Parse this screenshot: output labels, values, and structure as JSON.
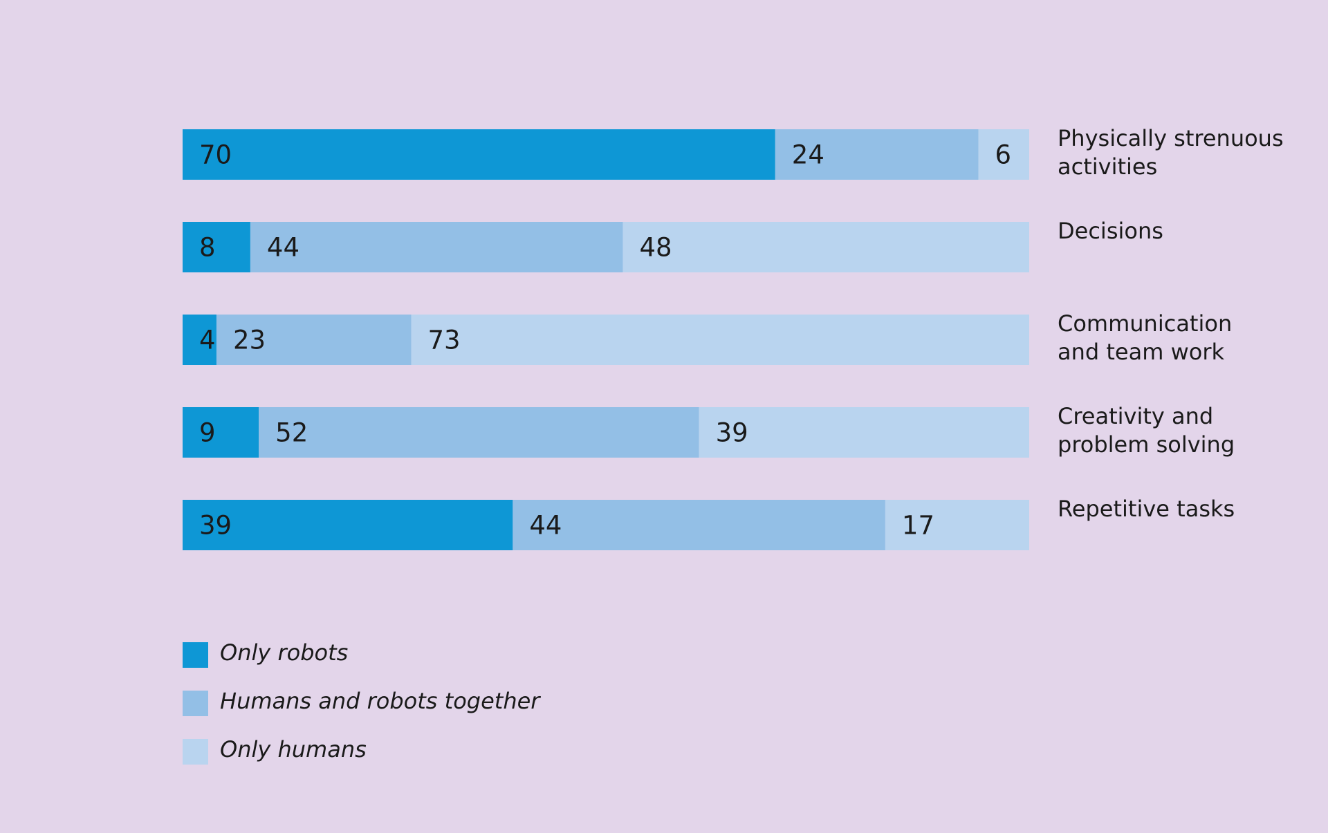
{
  "chart_data": {
    "type": "bar",
    "orientation": "horizontal",
    "stacked": true,
    "xlim": [
      0,
      100
    ],
    "grid": false,
    "legend_position": "bottom-left",
    "categories": [
      [
        "Physically strenuous",
        "activities"
      ],
      [
        "Decisions"
      ],
      [
        "Communication",
        "and team work"
      ],
      [
        "Creativity and",
        "problem solving"
      ],
      [
        "Repetitive tasks"
      ]
    ],
    "series": [
      {
        "name": "Only robots",
        "color": "#0e97d5",
        "values": [
          70,
          8,
          4,
          9,
          39
        ]
      },
      {
        "name": "Humans and robots together",
        "color": "#93bfe6",
        "values": [
          24,
          44,
          23,
          52,
          44
        ]
      },
      {
        "name": "Only humans",
        "color": "#b9d4ef",
        "values": [
          6,
          48,
          73,
          39,
          17
        ]
      }
    ]
  }
}
